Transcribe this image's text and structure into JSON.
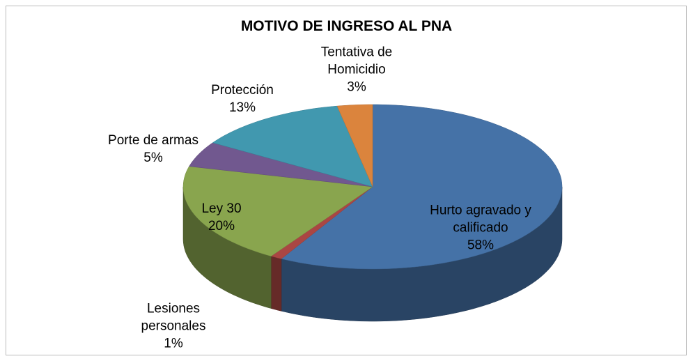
{
  "chart_data": {
    "type": "pie",
    "title": "MOTIVO DE INGRESO AL PNA",
    "categories": [
      "Hurto agravado y calificado",
      "Lesiones personales",
      "Ley 30",
      "Porte de armas",
      "Protección",
      "Tentativa de Homicidio"
    ],
    "values": [
      58,
      1,
      20,
      5,
      13,
      3
    ],
    "value_labels": [
      "58%",
      "1%",
      "20%",
      "5%",
      "13%",
      "3%"
    ],
    "colors": [
      "#4572a7",
      "#aa4643",
      "#89a54e",
      "#71588f",
      "#4198af",
      "#db843d"
    ]
  }
}
